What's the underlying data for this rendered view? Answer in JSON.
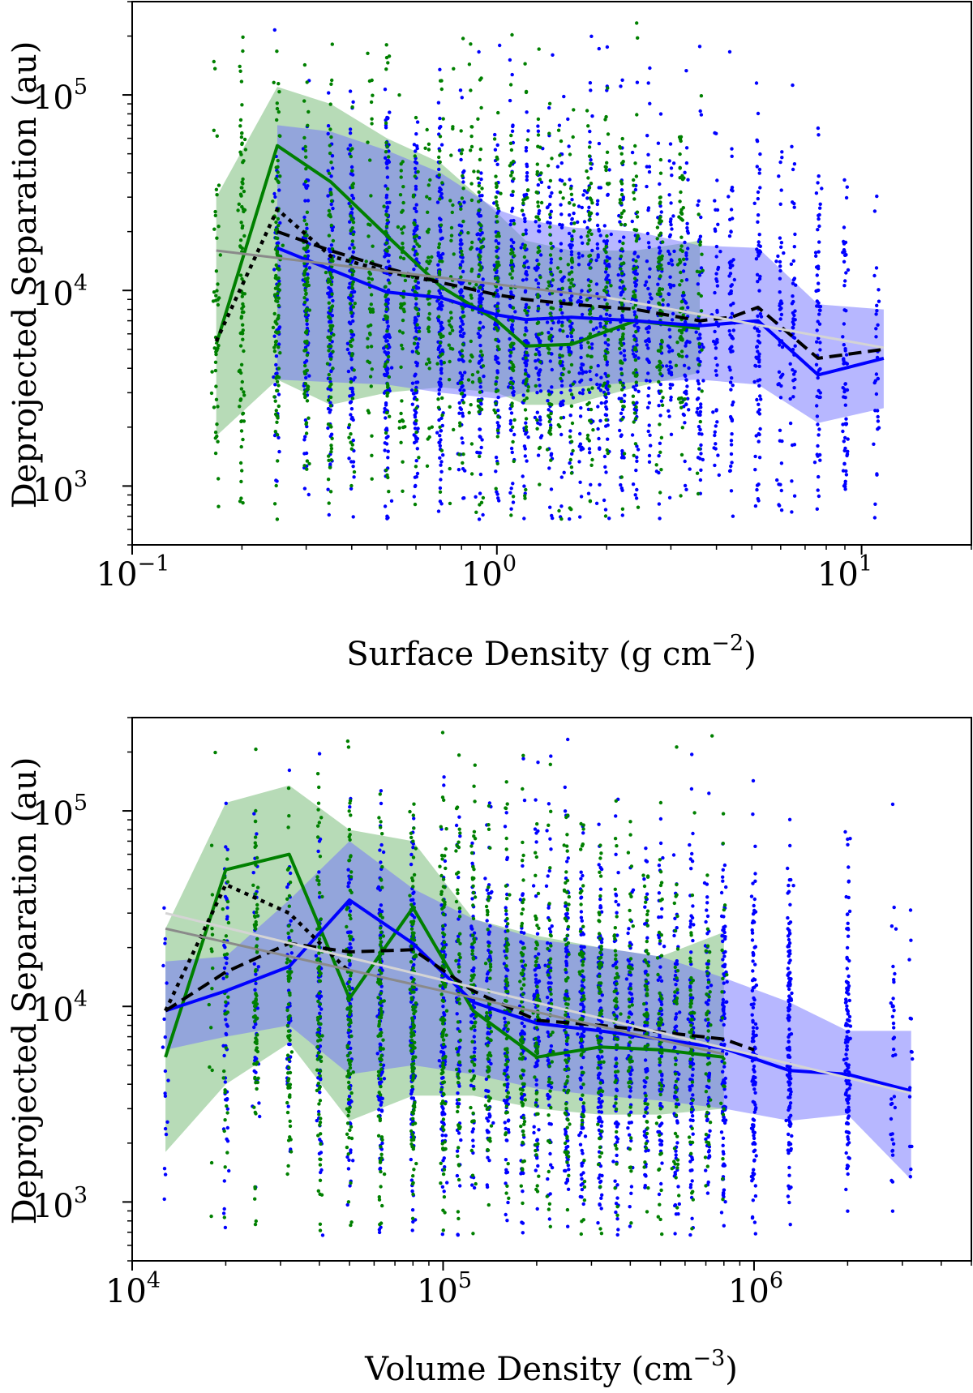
{
  "colors": {
    "blue": "#0000ff",
    "green": "#008000",
    "blue_band": "#7070ff",
    "green_band": "#60b060",
    "black": "#000000",
    "fit_dark": "#8a8a8a",
    "fit_light": "#d4d4d4"
  },
  "chart_data": [
    {
      "type": "scatter",
      "name": "panel-top",
      "title": "",
      "xlabel": "Surface Density (g cm",
      "xlabel_exp": "−2",
      "xlabel_close": ")",
      "ylabel": "Deprojected Separation (au)",
      "xscale": "log",
      "yscale": "log",
      "xlim": [
        0.1,
        20
      ],
      "ylim": [
        500,
        300000
      ],
      "xticks": [
        {
          "base": "10",
          "exp": "−1",
          "value": 0.1
        },
        {
          "base": "10",
          "exp": "0",
          "value": 1
        },
        {
          "base": "10",
          "exp": "1",
          "value": 10
        }
      ],
      "yticks": [
        {
          "base": "10",
          "exp": "3",
          "value": 1000
        },
        {
          "base": "10",
          "exp": "4",
          "value": 10000
        },
        {
          "base": "10",
          "exp": "5",
          "value": 100000
        }
      ],
      "grid": false,
      "legend": "none",
      "bands": [
        {
          "color": "green",
          "x": [
            0.17,
            0.25,
            0.35,
            0.5,
            0.7,
            1.0,
            1.2,
            1.6,
            2.4,
            3.6
          ],
          "lower": [
            1800,
            3500,
            2600,
            3000,
            3200,
            3000,
            2600,
            2600,
            3200,
            3800
          ],
          "upper": [
            30000,
            110000,
            90000,
            60000,
            45000,
            25000,
            18000,
            16000,
            16000,
            18000
          ]
        },
        {
          "color": "blue",
          "x": [
            0.25,
            0.35,
            0.5,
            0.7,
            1.0,
            1.2,
            1.6,
            2.4,
            3.6,
            5.2,
            7.6,
            11.5
          ],
          "lower": [
            3500,
            3400,
            3300,
            3000,
            2800,
            3000,
            3200,
            3400,
            3500,
            3300,
            2100,
            2500
          ],
          "upper": [
            70000,
            65000,
            52000,
            40000,
            26000,
            23000,
            21000,
            20000,
            17000,
            16500,
            8500,
            8000
          ]
        }
      ],
      "lines": [
        {
          "color": "green",
          "style": "solid",
          "x": [
            0.17,
            0.25,
            0.35,
            0.5,
            0.7,
            1.0,
            1.2,
            1.6,
            2.4,
            3.6
          ],
          "y": [
            5300,
            55000,
            36000,
            19000,
            10500,
            7000,
            5200,
            5300,
            7000,
            6400
          ]
        },
        {
          "color": "blue",
          "style": "solid",
          "x": [
            0.25,
            0.35,
            0.5,
            0.7,
            1.0,
            1.2,
            1.6,
            2.4,
            3.6,
            5.2,
            7.6,
            11.5
          ],
          "y": [
            16500,
            12800,
            9800,
            9200,
            7500,
            7100,
            7300,
            7000,
            6600,
            7000,
            3700,
            4500
          ]
        },
        {
          "color": "black",
          "style": "dotted",
          "x": [
            0.17,
            0.25,
            0.35,
            0.5,
            0.7
          ],
          "y": [
            5500,
            26000,
            15000,
            12500,
            11000
          ]
        },
        {
          "color": "black",
          "style": "dashed",
          "x": [
            0.25,
            0.35,
            0.5,
            0.7,
            1.0,
            1.2,
            1.6,
            2.4,
            3.6,
            4.4,
            5.2,
            7.6,
            11.5
          ],
          "y": [
            20000,
            16000,
            13000,
            11000,
            9500,
            9000,
            8500,
            8000,
            7000,
            7300,
            8200,
            4500,
            5000
          ]
        },
        {
          "color": "fit_dark",
          "style": "solid",
          "x": [
            0.17,
            2.0
          ],
          "y": [
            16000,
            9200
          ]
        },
        {
          "color": "fit_light",
          "style": "solid",
          "x": [
            2.0,
            11.5
          ],
          "y": [
            9200,
            5100
          ]
        }
      ],
      "scatter": [
        {
          "color": "blue",
          "count": 2600,
          "x_range": [
            0.25,
            11.5
          ],
          "x_center": 1.25,
          "x_spread": 0.55,
          "y_center": 6800,
          "y_spread": 0.5,
          "xbins": [
            0.25,
            0.3,
            0.35,
            0.4,
            0.5,
            0.6,
            0.7,
            0.8,
            0.9,
            1.0,
            1.1,
            1.2,
            1.3,
            1.4,
            1.5,
            1.6,
            1.7,
            1.8,
            1.9,
            2.0,
            2.2,
            2.4,
            2.6,
            2.8,
            3.0,
            3.3,
            3.6,
            4.0,
            4.4,
            5.2,
            6.0,
            6.5,
            7.6,
            9.0,
            11.0
          ],
          "seed": 11
        },
        {
          "color": "green",
          "count": 1600,
          "x_range": [
            0.17,
            3.6
          ],
          "x_center": 0.85,
          "x_spread": 0.65,
          "y_center": 8500,
          "y_spread": 0.55,
          "xbins": [
            0.17,
            0.2,
            0.25,
            0.3,
            0.35,
            0.4,
            0.45,
            0.5,
            0.55,
            0.6,
            0.65,
            0.7,
            0.75,
            0.8,
            0.85,
            0.9,
            1.0,
            1.1,
            1.2,
            1.3,
            1.4,
            1.5,
            1.6,
            1.8,
            2.0,
            2.2,
            2.4,
            2.8,
            3.2,
            3.6
          ],
          "seed": 23
        }
      ]
    },
    {
      "type": "scatter",
      "name": "panel-bottom",
      "title": "",
      "xlabel": "Volume Density (cm",
      "xlabel_exp": "−3",
      "xlabel_close": ")",
      "ylabel": "Deprojected Separation (au)",
      "xscale": "log",
      "yscale": "log",
      "xlim": [
        10000,
        5000000
      ],
      "ylim": [
        500,
        300000
      ],
      "xticks": [
        {
          "base": "10",
          "exp": "4",
          "value": 10000
        },
        {
          "base": "10",
          "exp": "5",
          "value": 100000
        },
        {
          "base": "10",
          "exp": "6",
          "value": 1000000
        }
      ],
      "yticks": [
        {
          "base": "10",
          "exp": "3",
          "value": 1000
        },
        {
          "base": "10",
          "exp": "4",
          "value": 10000
        },
        {
          "base": "10",
          "exp": "5",
          "value": 100000
        }
      ],
      "grid": false,
      "legend": "none",
      "bands": [
        {
          "color": "green",
          "x": [
            12800,
            20000,
            32000,
            50000,
            80000,
            125000,
            200000,
            320000,
            500000,
            800000
          ],
          "lower": [
            1800,
            4000,
            6500,
            2600,
            3500,
            3500,
            3000,
            2800,
            2800,
            3000
          ],
          "upper": [
            25000,
            110000,
            135000,
            80000,
            70000,
            28000,
            23000,
            20000,
            18000,
            24000
          ]
        },
        {
          "color": "blue",
          "x": [
            12800,
            20000,
            32000,
            50000,
            80000,
            125000,
            200000,
            320000,
            500000,
            800000,
            1300000,
            2000000,
            3200000
          ],
          "lower": [
            6000,
            7000,
            8000,
            4500,
            5000,
            4500,
            3800,
            3500,
            3300,
            3000,
            2600,
            2800,
            1300
          ],
          "upper": [
            17000,
            18000,
            35000,
            70000,
            40000,
            28000,
            22000,
            20000,
            18000,
            14000,
            10500,
            7500,
            7500
          ]
        }
      ],
      "lines": [
        {
          "color": "green",
          "style": "solid",
          "x": [
            12800,
            20000,
            32000,
            50000,
            80000,
            125000,
            200000,
            320000,
            500000,
            800000
          ],
          "y": [
            5500,
            50000,
            60000,
            11000,
            32000,
            9500,
            5500,
            6200,
            6000,
            5500
          ]
        },
        {
          "color": "blue",
          "style": "solid",
          "x": [
            12800,
            20000,
            32000,
            50000,
            80000,
            125000,
            200000,
            320000,
            500000,
            800000,
            1300000,
            2000000,
            3200000
          ],
          "y": [
            9500,
            12000,
            16000,
            35000,
            21000,
            10500,
            8200,
            7500,
            6800,
            6100,
            4700,
            4500,
            3700
          ]
        },
        {
          "color": "black",
          "style": "dotted",
          "x": [
            12800,
            20000,
            32000,
            50000
          ],
          "y": [
            9500,
            42000,
            30000,
            15000
          ]
        },
        {
          "color": "black",
          "style": "dashed",
          "x": [
            12800,
            20000,
            32000,
            50000,
            80000,
            125000,
            200000,
            320000,
            500000,
            800000,
            1000000
          ],
          "y": [
            9500,
            15000,
            21000,
            19000,
            19500,
            12000,
            8500,
            8000,
            7400,
            6800,
            6000
          ]
        },
        {
          "color": "fit_dark",
          "style": "solid",
          "x": [
            12800,
            800000
          ],
          "y": [
            25000,
            5700
          ]
        },
        {
          "color": "fit_light",
          "style": "solid",
          "x": [
            12800,
            3200000
          ],
          "y": [
            30000,
            3600
          ]
        }
      ],
      "scatter": [
        {
          "color": "blue",
          "count": 2600,
          "x_range": [
            12800,
            3200000
          ],
          "x_center": 280000,
          "x_spread": 0.6,
          "y_center": 7000,
          "y_spread": 0.5,
          "xbins": [
            12800,
            20000,
            25000,
            32000,
            40000,
            50000,
            63000,
            80000,
            100000,
            112000,
            125000,
            140000,
            160000,
            180000,
            200000,
            220000,
            250000,
            280000,
            320000,
            360000,
            400000,
            450000,
            500000,
            560000,
            630000,
            710000,
            800000,
            1000000,
            1300000,
            2000000,
            2800000,
            3200000
          ],
          "seed": 37
        },
        {
          "color": "green",
          "count": 1700,
          "x_range": [
            18000,
            800000
          ],
          "x_center": 140000,
          "x_spread": 0.6,
          "y_center": 8500,
          "y_spread": 0.55,
          "xbins": [
            18000,
            20000,
            25000,
            32000,
            40000,
            50000,
            63000,
            80000,
            100000,
            112000,
            125000,
            140000,
            160000,
            180000,
            200000,
            220000,
            250000,
            280000,
            320000,
            360000,
            400000,
            450000,
            500000,
            560000,
            630000,
            710000,
            800000
          ],
          "seed": 51
        }
      ]
    }
  ]
}
